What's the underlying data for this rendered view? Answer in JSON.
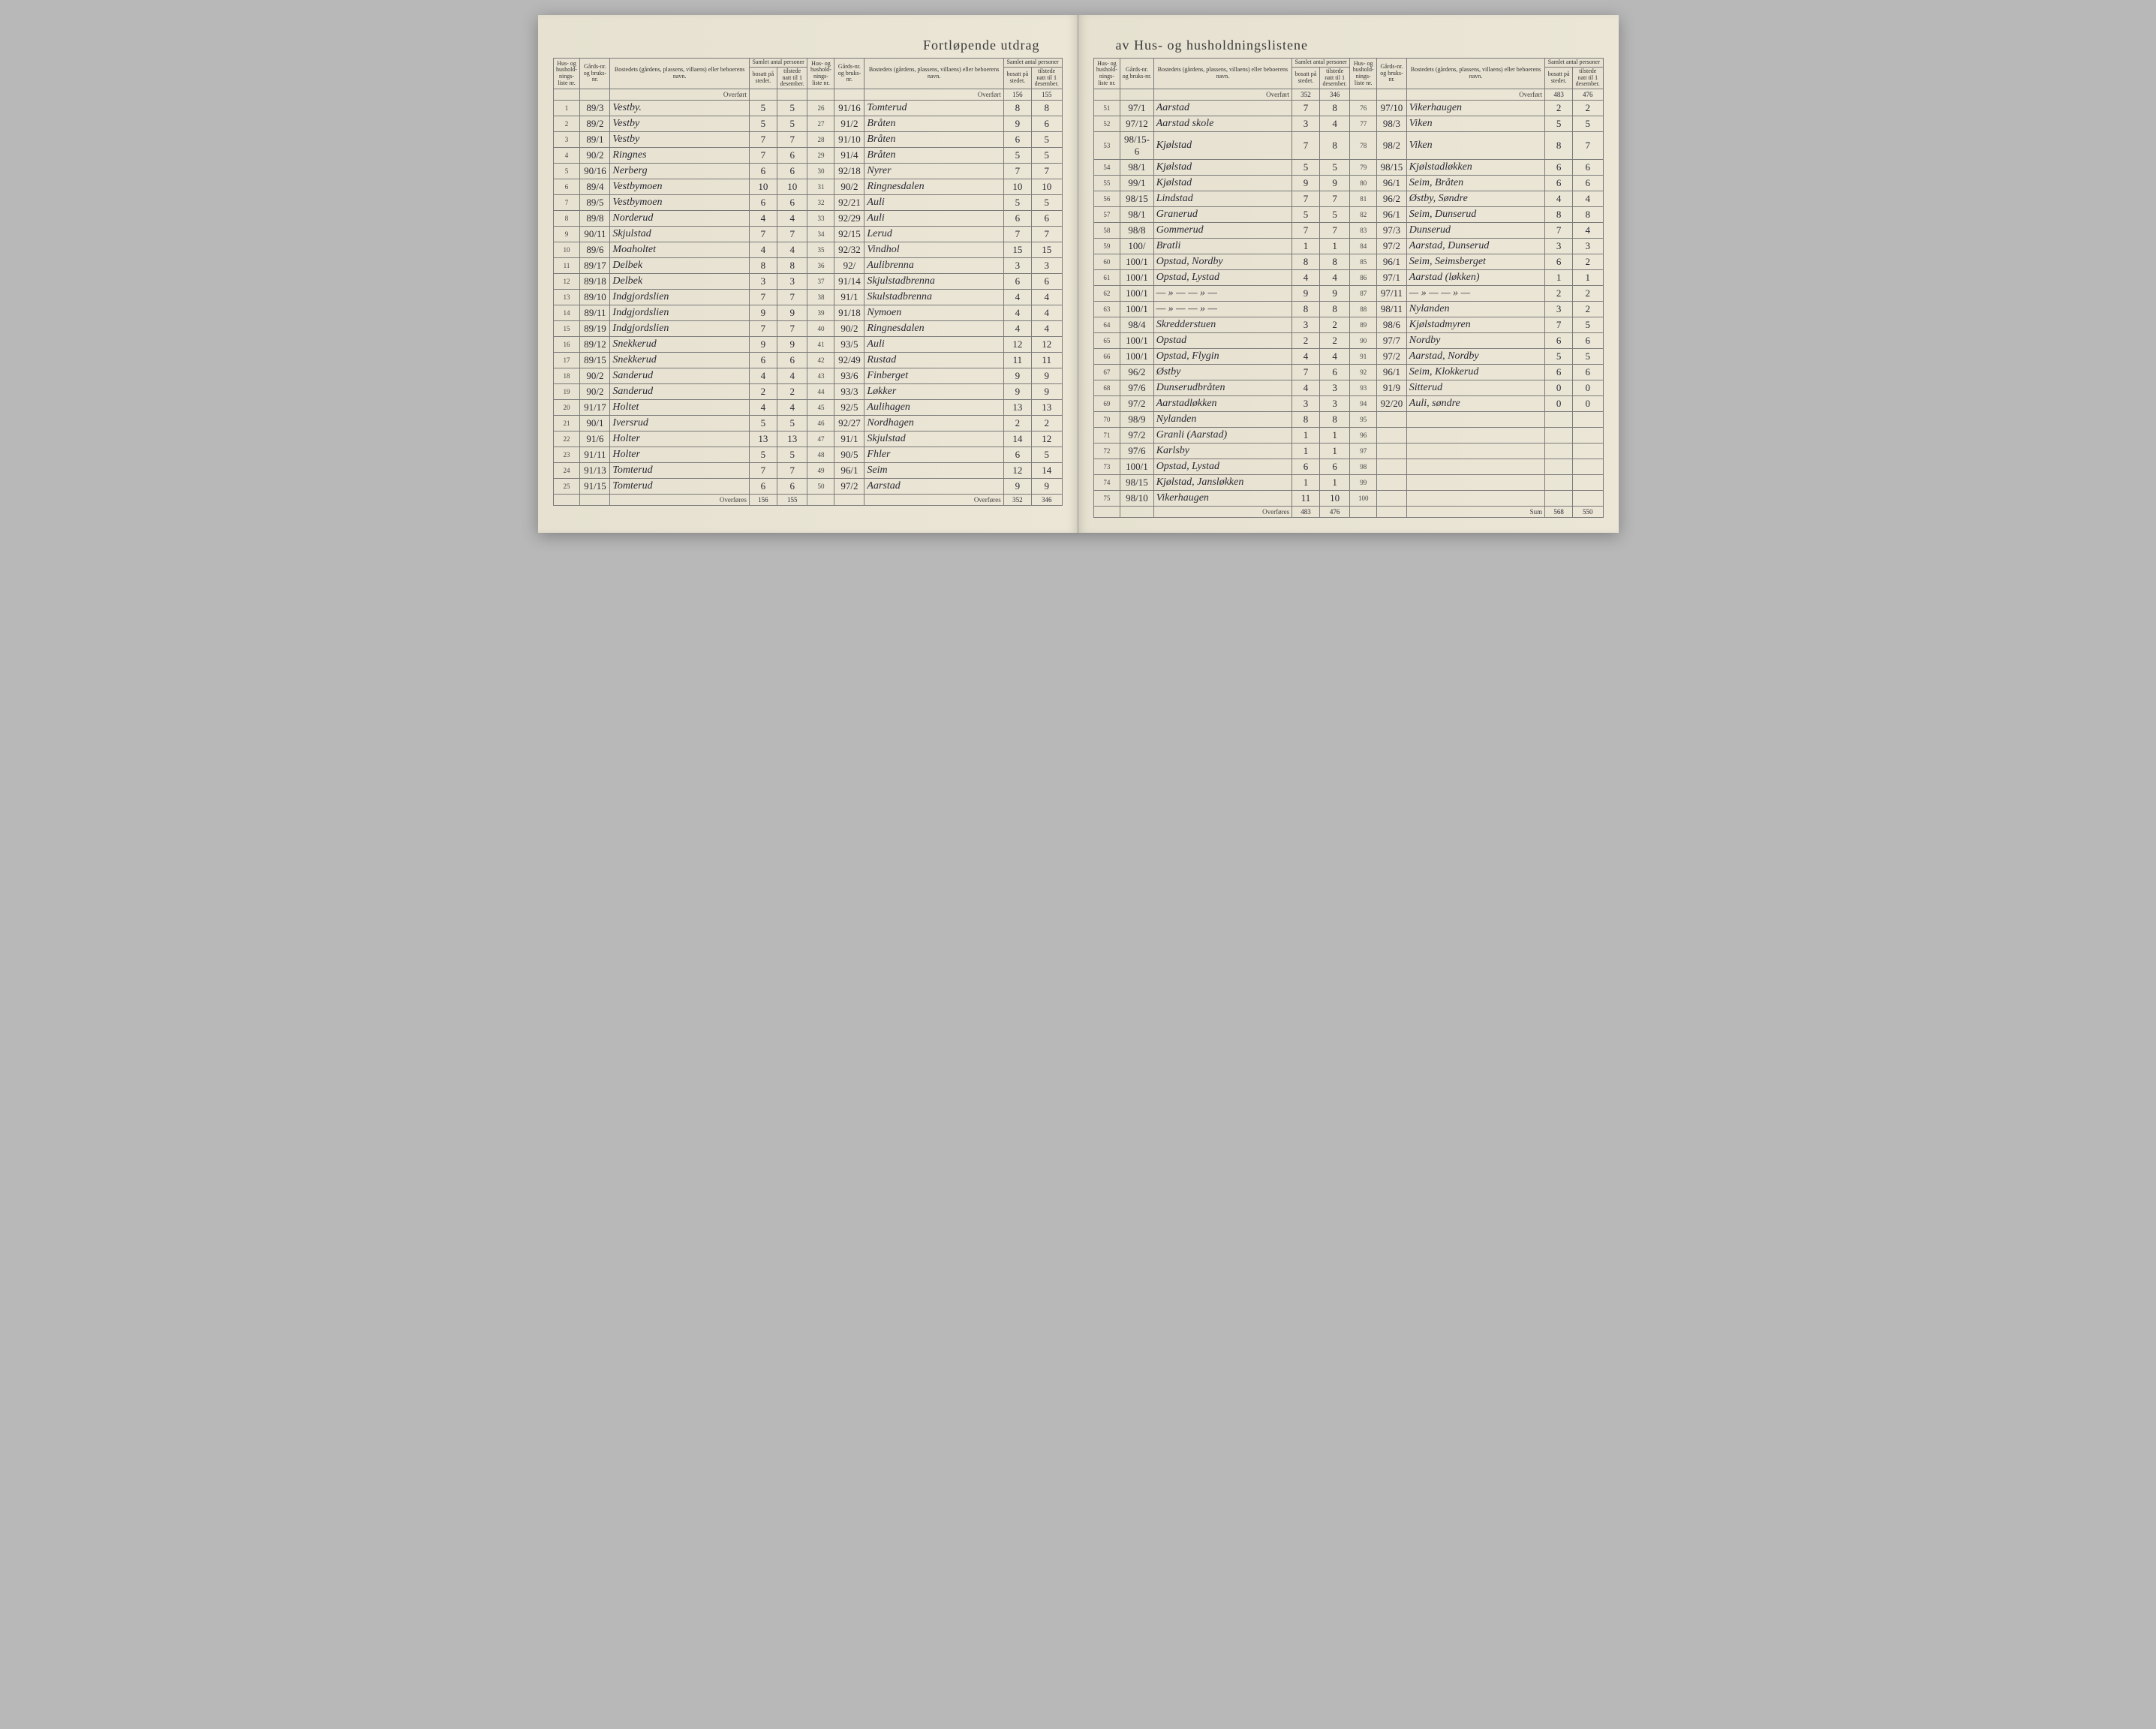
{
  "title_left": "Fortløpende utdrag",
  "title_right": "av Hus- og husholdningslistene",
  "headers": {
    "hus": "Hus- og hushold-nings-liste nr.",
    "gard": "Gårds-nr. og bruks-nr.",
    "bosted": "Bostedets (gårdens, plassens, villaens) eller beboerens navn.",
    "samlet": "Samlet antal personer",
    "bosatt": "bosatt på stedet.",
    "tilstede": "tilstede natt til 1 desember."
  },
  "labels": {
    "overfort": "Overført",
    "overfores": "Overføres",
    "sum": "Sum"
  },
  "carry": {
    "c1_top": [
      "",
      ""
    ],
    "c2_top": [
      "156",
      "155"
    ],
    "c3_top": [
      "352",
      "346"
    ],
    "c4_top": [
      "483",
      "476"
    ],
    "c1_bot": [
      "156",
      "155"
    ],
    "c2_bot": [
      "352",
      "346"
    ],
    "c3_bot": [
      "483",
      "476"
    ],
    "c4_bot": [
      "568",
      "550"
    ]
  },
  "columns": [
    [
      {
        "n": "1",
        "g": "89/3",
        "name": "Vestby.",
        "b": "5",
        "t": "5"
      },
      {
        "n": "2",
        "g": "89/2",
        "name": "Vestby",
        "b": "5",
        "t": "5"
      },
      {
        "n": "3",
        "g": "89/1",
        "name": "Vestby",
        "b": "7",
        "t": "7"
      },
      {
        "n": "4",
        "g": "90/2",
        "name": "Ringnes",
        "b": "7",
        "t": "6"
      },
      {
        "n": "5",
        "g": "90/16",
        "name": "Nerberg",
        "b": "6",
        "t": "6"
      },
      {
        "n": "6",
        "g": "89/4",
        "name": "Vestbymoen",
        "b": "10",
        "t": "10"
      },
      {
        "n": "7",
        "g": "89/5",
        "name": "Vestbymoen",
        "b": "6",
        "t": "6"
      },
      {
        "n": "8",
        "g": "89/8",
        "name": "Norderud",
        "b": "4",
        "t": "4"
      },
      {
        "n": "9",
        "g": "90/11",
        "name": "Skjulstad",
        "b": "7",
        "t": "7"
      },
      {
        "n": "10",
        "g": "89/6",
        "name": "Moaholtet",
        "b": "4",
        "t": "4"
      },
      {
        "n": "11",
        "g": "89/17",
        "name": "Delbek",
        "b": "8",
        "t": "8"
      },
      {
        "n": "12",
        "g": "89/18",
        "name": "Delbek",
        "b": "3",
        "t": "3"
      },
      {
        "n": "13",
        "g": "89/10",
        "name": "Indgjordslien",
        "b": "7",
        "t": "7"
      },
      {
        "n": "14",
        "g": "89/11",
        "name": "Indgjordslien",
        "b": "9",
        "t": "9"
      },
      {
        "n": "15",
        "g": "89/19",
        "name": "Indgjordslien",
        "b": "7",
        "t": "7"
      },
      {
        "n": "16",
        "g": "89/12",
        "name": "Snekkerud",
        "b": "9",
        "t": "9"
      },
      {
        "n": "17",
        "g": "89/15",
        "name": "Snekkerud",
        "b": "6",
        "t": "6"
      },
      {
        "n": "18",
        "g": "90/2",
        "name": "Sanderud",
        "b": "4",
        "t": "4"
      },
      {
        "n": "19",
        "g": "90/2",
        "name": "Sanderud",
        "b": "2",
        "t": "2"
      },
      {
        "n": "20",
        "g": "91/17",
        "name": "Holtet",
        "b": "4",
        "t": "4"
      },
      {
        "n": "21",
        "g": "90/1",
        "name": "Iversrud",
        "b": "5",
        "t": "5"
      },
      {
        "n": "22",
        "g": "91/6",
        "name": "Holter",
        "b": "13",
        "t": "13"
      },
      {
        "n": "23",
        "g": "91/11",
        "name": "Holter",
        "b": "5",
        "t": "5"
      },
      {
        "n": "24",
        "g": "91/13",
        "name": "Tomterud",
        "b": "7",
        "t": "7"
      },
      {
        "n": "25",
        "g": "91/15",
        "name": "Tomterud",
        "b": "6",
        "t": "6"
      }
    ],
    [
      {
        "n": "26",
        "g": "91/16",
        "name": "Tomterud",
        "b": "8",
        "t": "8"
      },
      {
        "n": "27",
        "g": "91/2",
        "name": "Bråten",
        "b": "9",
        "t": "6"
      },
      {
        "n": "28",
        "g": "91/10",
        "name": "Bråten",
        "b": "6",
        "t": "5"
      },
      {
        "n": "29",
        "g": "91/4",
        "name": "Bråten",
        "b": "5",
        "t": "5"
      },
      {
        "n": "30",
        "g": "92/18",
        "name": "Nyrer",
        "b": "7",
        "t": "7"
      },
      {
        "n": "31",
        "g": "90/2",
        "name": "Ringnesdalen",
        "b": "10",
        "t": "10"
      },
      {
        "n": "32",
        "g": "92/21",
        "name": "Auli",
        "b": "5",
        "t": "5"
      },
      {
        "n": "33",
        "g": "92/29",
        "name": "Auli",
        "b": "6",
        "t": "6"
      },
      {
        "n": "34",
        "g": "92/15",
        "name": "Lerud",
        "b": "7",
        "t": "7"
      },
      {
        "n": "35",
        "g": "92/32",
        "name": "Vindhol",
        "b": "15",
        "t": "15"
      },
      {
        "n": "36",
        "g": "92/",
        "name": "Aulibrenna",
        "b": "3",
        "t": "3"
      },
      {
        "n": "37",
        "g": "91/14",
        "name": "Skjulstadbrenna",
        "b": "6",
        "t": "6"
      },
      {
        "n": "38",
        "g": "91/1",
        "name": "Skulstadbrenna",
        "b": "4",
        "t": "4"
      },
      {
        "n": "39",
        "g": "91/18",
        "name": "Nymoen",
        "b": "4",
        "t": "4"
      },
      {
        "n": "40",
        "g": "90/2",
        "name": "Ringnesdalen",
        "b": "4",
        "t": "4"
      },
      {
        "n": "41",
        "g": "93/5",
        "name": "Auli",
        "b": "12",
        "t": "12"
      },
      {
        "n": "42",
        "g": "92/49",
        "name": "Rustad",
        "b": "11",
        "t": "11"
      },
      {
        "n": "43",
        "g": "93/6",
        "name": "Finberget",
        "b": "9",
        "t": "9"
      },
      {
        "n": "44",
        "g": "93/3",
        "name": "Løkker",
        "b": "9",
        "t": "9"
      },
      {
        "n": "45",
        "g": "92/5",
        "name": "Aulihagen",
        "b": "13",
        "t": "13"
      },
      {
        "n": "46",
        "g": "92/27",
        "name": "Nordhagen",
        "b": "2",
        "t": "2"
      },
      {
        "n": "47",
        "g": "91/1",
        "name": "Skjulstad",
        "b": "14",
        "t": "12"
      },
      {
        "n": "48",
        "g": "90/5",
        "name": "Fhler",
        "b": "6",
        "t": "5"
      },
      {
        "n": "49",
        "g": "96/1",
        "name": "Seim",
        "b": "12",
        "t": "14"
      },
      {
        "n": "50",
        "g": "97/2",
        "name": "Aarstad",
        "b": "9",
        "t": "9"
      }
    ],
    [
      {
        "n": "51",
        "g": "97/1",
        "name": "Aarstad",
        "b": "7",
        "t": "8"
      },
      {
        "n": "52",
        "g": "97/12",
        "name": "Aarstad skole",
        "b": "3",
        "t": "4"
      },
      {
        "n": "53",
        "g": "98/15-6",
        "name": "Kjølstad",
        "b": "7",
        "t": "8"
      },
      {
        "n": "54",
        "g": "98/1",
        "name": "Kjølstad",
        "b": "5",
        "t": "5"
      },
      {
        "n": "55",
        "g": "99/1",
        "name": "Kjølstad",
        "b": "9",
        "t": "9"
      },
      {
        "n": "56",
        "g": "98/15",
        "name": "Lindstad",
        "b": "7",
        "t": "7"
      },
      {
        "n": "57",
        "g": "98/1",
        "name": "Granerud",
        "b": "5",
        "t": "5"
      },
      {
        "n": "58",
        "g": "98/8",
        "name": "Gommerud",
        "b": "7",
        "t": "7"
      },
      {
        "n": "59",
        "g": "100/",
        "name": "Bratli",
        "b": "1",
        "t": "1"
      },
      {
        "n": "60",
        "g": "100/1",
        "name": "Opstad, Nordby",
        "b": "8",
        "t": "8"
      },
      {
        "n": "61",
        "g": "100/1",
        "name": "Opstad, Lystad",
        "b": "4",
        "t": "4"
      },
      {
        "n": "62",
        "g": "100/1",
        "name": "— » —  — » —",
        "b": "9",
        "t": "9"
      },
      {
        "n": "63",
        "g": "100/1",
        "name": "— » —  — » —",
        "b": "8",
        "t": "8"
      },
      {
        "n": "64",
        "g": "98/4",
        "name": "Skredderstuen",
        "b": "3",
        "t": "2"
      },
      {
        "n": "65",
        "g": "100/1",
        "name": "Opstad",
        "b": "2",
        "t": "2"
      },
      {
        "n": "66",
        "g": "100/1",
        "name": "Opstad, Flygin",
        "b": "4",
        "t": "4"
      },
      {
        "n": "67",
        "g": "96/2",
        "name": "Østby",
        "b": "7",
        "t": "6"
      },
      {
        "n": "68",
        "g": "97/6",
        "name": "Dunserudbråten",
        "b": "4",
        "t": "3"
      },
      {
        "n": "69",
        "g": "97/2",
        "name": "Aarstadløkken",
        "b": "3",
        "t": "3"
      },
      {
        "n": "70",
        "g": "98/9",
        "name": "Nylanden",
        "b": "8",
        "t": "8"
      },
      {
        "n": "71",
        "g": "97/2",
        "name": "Granli (Aarstad)",
        "b": "1",
        "t": "1"
      },
      {
        "n": "72",
        "g": "97/6",
        "name": "Karlsby",
        "b": "1",
        "t": "1"
      },
      {
        "n": "73",
        "g": "100/1",
        "name": "Opstad, Lystad",
        "b": "6",
        "t": "6"
      },
      {
        "n": "74",
        "g": "98/15",
        "name": "Kjølstad, Jansløkken",
        "b": "1",
        "t": "1"
      },
      {
        "n": "75",
        "g": "98/10",
        "name": "Vikerhaugen",
        "b": "11",
        "t": "10"
      }
    ],
    [
      {
        "n": "76",
        "g": "97/10",
        "name": "Vikerhaugen",
        "b": "2",
        "t": "2"
      },
      {
        "n": "77",
        "g": "98/3",
        "name": "Viken",
        "b": "5",
        "t": "5"
      },
      {
        "n": "78",
        "g": "98/2",
        "name": "Viken",
        "b": "8",
        "t": "7"
      },
      {
        "n": "79",
        "g": "98/15",
        "name": "Kjølstadløkken",
        "b": "6",
        "t": "6"
      },
      {
        "n": "80",
        "g": "96/1",
        "name": "Seim, Bråten",
        "b": "6",
        "t": "6"
      },
      {
        "n": "81",
        "g": "96/2",
        "name": "Østby, Søndre",
        "b": "4",
        "t": "4"
      },
      {
        "n": "82",
        "g": "96/1",
        "name": "Seim, Dunserud",
        "b": "8",
        "t": "8"
      },
      {
        "n": "83",
        "g": "97/3",
        "name": "Dunserud",
        "b": "7",
        "t": "4"
      },
      {
        "n": "84",
        "g": "97/2",
        "name": "Aarstad, Dunserud",
        "b": "3",
        "t": "3"
      },
      {
        "n": "85",
        "g": "96/1",
        "name": "Seim, Seimsberget",
        "b": "6",
        "t": "2"
      },
      {
        "n": "86",
        "g": "97/1",
        "name": "Aarstad (løkken)",
        "b": "1",
        "t": "1"
      },
      {
        "n": "87",
        "g": "97/11",
        "name": "— » —  — » —",
        "b": "2",
        "t": "2"
      },
      {
        "n": "88",
        "g": "98/11",
        "name": "Nylanden",
        "b": "3",
        "t": "2"
      },
      {
        "n": "89",
        "g": "98/6",
        "name": "Kjølstadmyren",
        "b": "7",
        "t": "5"
      },
      {
        "n": "90",
        "g": "97/7",
        "name": "Nordby",
        "b": "6",
        "t": "6"
      },
      {
        "n": "91",
        "g": "97/2",
        "name": "Aarstad, Nordby",
        "b": "5",
        "t": "5"
      },
      {
        "n": "92",
        "g": "96/1",
        "name": "Seim, Klokkerud",
        "b": "6",
        "t": "6"
      },
      {
        "n": "93",
        "g": "91/9",
        "name": "Sitterud",
        "b": "0",
        "t": "0"
      },
      {
        "n": "94",
        "g": "92/20",
        "name": "Auli, søndre",
        "b": "0",
        "t": "0"
      },
      {
        "n": "95",
        "g": "",
        "name": "",
        "b": "",
        "t": ""
      },
      {
        "n": "96",
        "g": "",
        "name": "",
        "b": "",
        "t": ""
      },
      {
        "n": "97",
        "g": "",
        "name": "",
        "b": "",
        "t": ""
      },
      {
        "n": "98",
        "g": "",
        "name": "",
        "b": "",
        "t": ""
      },
      {
        "n": "99",
        "g": "",
        "name": "",
        "b": "",
        "t": ""
      },
      {
        "n": "100",
        "g": "",
        "name": "",
        "b": "",
        "t": ""
      }
    ]
  ]
}
